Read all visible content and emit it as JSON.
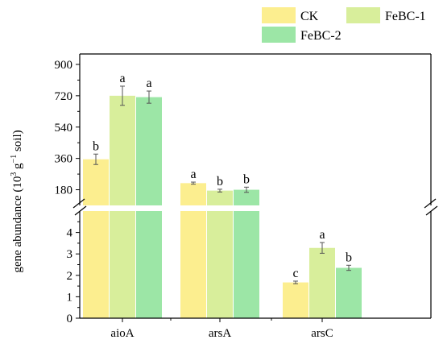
{
  "chart_data": {
    "type": "bar",
    "title": "",
    "xlabel": "",
    "ylabel_prefix": "gene abundance (10",
    "ylabel_exp1": "3",
    "ylabel_mid": " g",
    "ylabel_exp2": "−1",
    "ylabel_suffix": " soil)",
    "categories": [
      "aioA",
      "arsA",
      "arsC"
    ],
    "legend_placement": "top-right",
    "axis_break": true,
    "lower_ylim": [
      0,
      5
    ],
    "lower_yticks": [
      "0",
      "1",
      "2",
      "3",
      "4"
    ],
    "upper_ylim": [
      90,
      960
    ],
    "upper_yticks": [
      "180",
      "360",
      "540",
      "720",
      "900"
    ],
    "series": [
      {
        "name": "CK",
        "color": "#FCEE8F",
        "values": [
          355,
          218,
          1.67
        ],
        "errors": [
          30,
          6,
          0.06
        ],
        "labels": [
          "b",
          "a",
          "c"
        ]
      },
      {
        "name": "FeBC-1",
        "color": "#D8EE9B",
        "values": [
          720,
          175,
          3.28
        ],
        "errors": [
          55,
          8,
          0.25
        ],
        "labels": [
          "a",
          "b",
          "a"
        ]
      },
      {
        "name": "FeBC-2",
        "color": "#9CE6A6",
        "values": [
          712,
          180,
          2.35
        ],
        "errors": [
          35,
          15,
          0.12
        ],
        "labels": [
          "a",
          "b",
          "b"
        ]
      }
    ]
  }
}
